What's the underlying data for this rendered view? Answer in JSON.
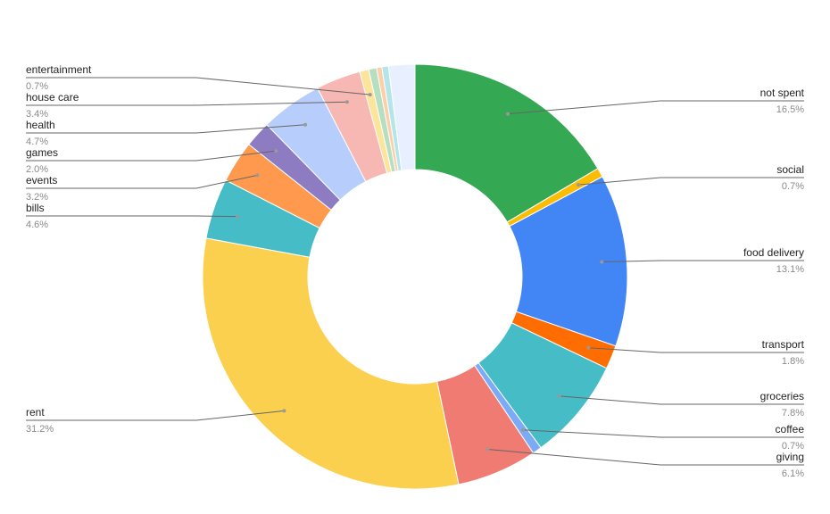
{
  "chart_data": {
    "type": "pie",
    "donut": true,
    "title": "",
    "unit": "%",
    "slices": [
      {
        "label": "not spent",
        "value": 16.5,
        "pct_label": "16.5%",
        "color": "#34a853",
        "side": "right"
      },
      {
        "label": "social",
        "value": 0.7,
        "pct_label": "0.7%",
        "color": "#fbbc04",
        "side": "right"
      },
      {
        "label": "food delivery",
        "value": 13.1,
        "pct_label": "13.1%",
        "color": "#4285f4",
        "side": "right"
      },
      {
        "label": "transport",
        "value": 1.8,
        "pct_label": "1.8%",
        "color": "#ff6d01",
        "side": "right"
      },
      {
        "label": "groceries",
        "value": 7.8,
        "pct_label": "7.8%",
        "color": "#46bdc6",
        "side": "right"
      },
      {
        "label": "coffee",
        "value": 0.7,
        "pct_label": "0.7%",
        "color": "#7baaf7",
        "side": "right"
      },
      {
        "label": "giving",
        "value": 6.1,
        "pct_label": "6.1%",
        "color": "#f07b72",
        "side": "right"
      },
      {
        "label": "rent",
        "value": 31.2,
        "pct_label": "31.2%",
        "color": "#fcd04f",
        "side": "left"
      },
      {
        "label": "bills",
        "value": 4.6,
        "pct_label": "4.6%",
        "color": "#46bdc6",
        "side": "left"
      },
      {
        "label": "events",
        "value": 3.2,
        "pct_label": "3.2%",
        "color": "#ff994d",
        "side": "left"
      },
      {
        "label": "games",
        "value": 2.0,
        "pct_label": "2.0%",
        "color": "#8e7cc3",
        "side": "left"
      },
      {
        "label": "health",
        "value": 4.7,
        "pct_label": "4.7%",
        "color": "#b7cdfb",
        "side": "left"
      },
      {
        "label": "house care",
        "value": 3.4,
        "pct_label": "3.4%",
        "color": "#f7b7b2",
        "side": "left"
      },
      {
        "label": "entertainment",
        "value": 0.7,
        "pct_label": "0.7%",
        "color": "#fde49b",
        "side": "left"
      },
      {
        "label": "",
        "value": 0.6,
        "pct_label": "",
        "color": "#b6dec0",
        "side": "left"
      },
      {
        "label": "",
        "value": 0.4,
        "pct_label": "",
        "color": "#fccfa8",
        "side": "left"
      },
      {
        "label": "",
        "value": 0.5,
        "pct_label": "",
        "color": "#b3e5ea",
        "side": "left"
      },
      {
        "label": "",
        "value": 2.0,
        "pct_label": "",
        "color": "#e8effe",
        "side": "left"
      }
    ],
    "legend": "none"
  }
}
